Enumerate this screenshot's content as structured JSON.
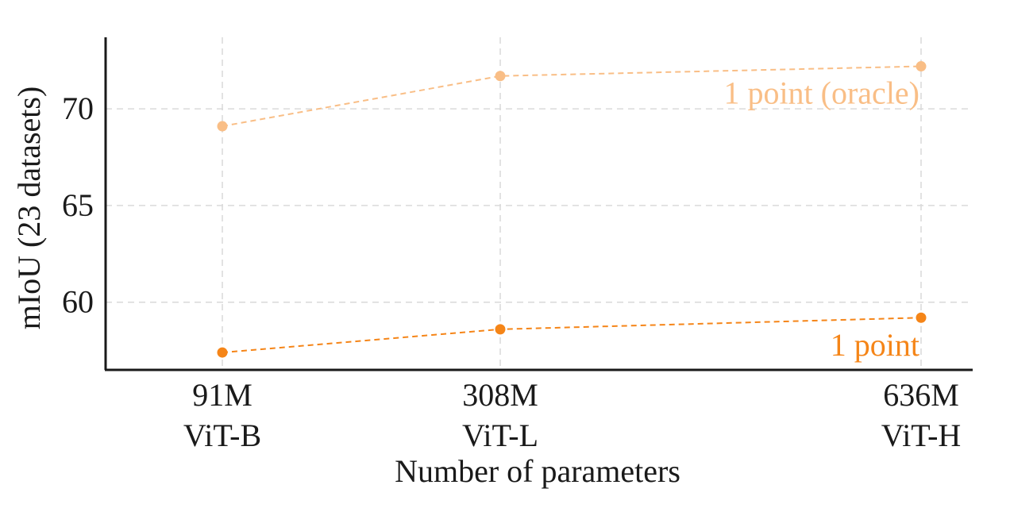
{
  "chart_data": {
    "type": "line",
    "categories": [
      {
        "params": "91M",
        "model": "ViT-B"
      },
      {
        "params": "308M",
        "model": "ViT-L"
      },
      {
        "params": "636M",
        "model": "ViT-H"
      }
    ],
    "x_values": [
      91,
      308,
      636
    ],
    "series": [
      {
        "name": "1 point (oracle)",
        "values": [
          69.1,
          71.7,
          72.2
        ],
        "color": "#f9be86",
        "line_style": "dashed"
      },
      {
        "name": "1 point",
        "values": [
          57.4,
          58.6,
          59.2
        ],
        "color": "#f58518",
        "line_style": "dashed"
      }
    ],
    "xlabel": "Number of parameters",
    "ylabel": "mIoU (23 datasets)",
    "ylim": [
      56.5,
      73.7
    ],
    "yticks": [
      60,
      65,
      70
    ],
    "grid": true,
    "legend": "inline labels at right end of each series"
  }
}
